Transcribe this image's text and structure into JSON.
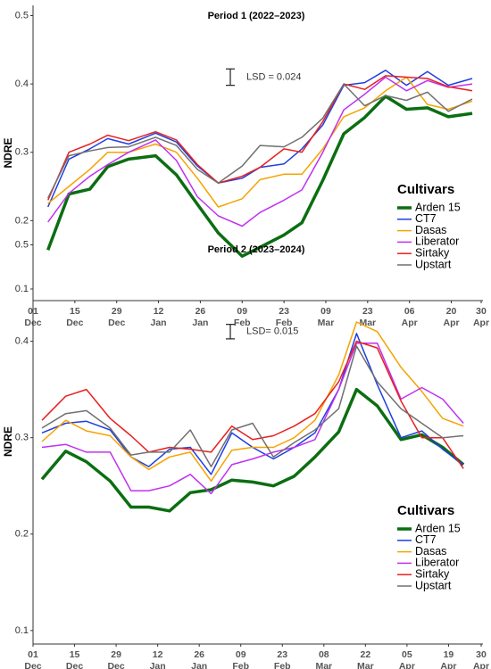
{
  "chart_data": [
    {
      "type": "line",
      "title": "Period 1 (2022–2023)",
      "y_label": "NDRE",
      "annotation": "LSD = 0.024",
      "lsd": 0.024,
      "legend_title": "Cultivars",
      "legend": "right",
      "x": [
        5,
        12,
        19,
        25,
        32,
        41,
        48,
        55,
        62,
        70,
        76,
        84,
        90,
        97,
        104,
        111,
        118,
        125,
        132,
        139,
        147
      ],
      "xlim": [
        0,
        150
      ],
      "xticks": [
        {
          "value": 0,
          "label": "01 Dec"
        },
        {
          "value": 14,
          "label": "15 Dec"
        },
        {
          "value": 28,
          "label": "29 Dec"
        },
        {
          "value": 42,
          "label": "12 Jan"
        },
        {
          "value": 56,
          "label": "26 Jan"
        },
        {
          "value": 70,
          "label": "09 Feb"
        },
        {
          "value": 84,
          "label": "23 Feb"
        },
        {
          "value": 98,
          "label": "09 Mar"
        },
        {
          "value": 112,
          "label": "23 Mar"
        },
        {
          "value": 126,
          "label": "06 Apr"
        },
        {
          "value": 140,
          "label": "20 Apr"
        },
        {
          "value": 150,
          "label": "30 Apr"
        }
      ],
      "ylim": [
        0.083,
        0.515
      ],
      "yticks": [
        0.1,
        0.2,
        0.3,
        0.4,
        0.5
      ],
      "series": [
        {
          "name": "Arden 15",
          "color": "#0b6e12",
          "values": [
            0.157,
            0.239,
            0.246,
            0.279,
            0.29,
            0.295,
            0.267,
            0.224,
            0.182,
            0.148,
            0.161,
            0.179,
            0.197,
            0.259,
            0.327,
            0.351,
            0.382,
            0.363,
            0.365,
            0.352,
            0.357
          ]
        },
        {
          "name": "CT7",
          "color": "#1f3fe0",
          "values": [
            0.22,
            0.29,
            0.305,
            0.32,
            0.312,
            0.328,
            0.315,
            0.28,
            0.255,
            0.262,
            0.278,
            0.283,
            0.305,
            0.34,
            0.398,
            0.402,
            0.42,
            0.398,
            0.418,
            0.398,
            0.408
          ]
        },
        {
          "name": "Dasas",
          "color": "#f5a300",
          "values": [
            0.225,
            0.25,
            0.275,
            0.3,
            0.3,
            0.312,
            0.3,
            0.262,
            0.22,
            0.232,
            0.26,
            0.268,
            0.268,
            0.305,
            0.352,
            0.365,
            0.39,
            0.41,
            0.37,
            0.363,
            0.375
          ]
        },
        {
          "name": "Liberator",
          "color": "#c030f0",
          "values": [
            0.198,
            0.24,
            0.265,
            0.282,
            0.3,
            0.318,
            0.288,
            0.235,
            0.207,
            0.192,
            0.212,
            0.23,
            0.245,
            0.3,
            0.362,
            0.385,
            0.41,
            0.39,
            0.405,
            0.395,
            0.4
          ]
        },
        {
          "name": "Sirtaky",
          "color": "#e82020",
          "values": [
            0.23,
            0.3,
            0.312,
            0.325,
            0.317,
            0.33,
            0.318,
            0.282,
            0.255,
            0.265,
            0.278,
            0.305,
            0.3,
            0.345,
            0.4,
            0.392,
            0.412,
            0.41,
            0.408,
            0.396,
            0.39
          ]
        },
        {
          "name": "Upstart",
          "color": "#707070",
          "values": [
            0.233,
            0.295,
            0.302,
            0.307,
            0.308,
            0.322,
            0.31,
            0.275,
            0.255,
            0.28,
            0.31,
            0.308,
            0.322,
            0.35,
            0.4,
            0.368,
            0.383,
            0.376,
            0.388,
            0.36,
            0.378
          ]
        }
      ]
    },
    {
      "type": "line",
      "title": "Period 2 (2023–2024)",
      "y_label": "NDRE",
      "annotation": "LSD= 0.015",
      "lsd": 0.015,
      "legend_title": "Cultivars",
      "legend": "right",
      "x": [
        3,
        11,
        18,
        26,
        33,
        39,
        46,
        53,
        60,
        67,
        74,
        81,
        88,
        95,
        103,
        109,
        116,
        124,
        131,
        138,
        145
      ],
      "xlim": [
        0,
        151
      ],
      "xticks": [
        {
          "value": 0,
          "label": "01 Dec"
        },
        {
          "value": 14,
          "label": "15 Dec"
        },
        {
          "value": 28,
          "label": "29 Dec"
        },
        {
          "value": 42,
          "label": "12 Jan"
        },
        {
          "value": 56,
          "label": "26 Jan"
        },
        {
          "value": 70,
          "label": "09 Feb"
        },
        {
          "value": 84,
          "label": "23 Feb"
        },
        {
          "value": 98,
          "label": "08 Mar"
        },
        {
          "value": 112,
          "label": "22 Mar"
        },
        {
          "value": 126,
          "label": "05 Apr"
        },
        {
          "value": 140,
          "label": "19 Apr"
        },
        {
          "value": 151,
          "label": "30 Apr"
        }
      ],
      "ylim": [
        0.086,
        0.506
      ],
      "yticks": [
        0.1,
        0.2,
        0.3,
        0.4,
        0.5
      ],
      "series": [
        {
          "name": "Arden 15",
          "color": "#0b6e12",
          "values": [
            0.257,
            0.286,
            0.275,
            0.255,
            0.228,
            0.228,
            0.224,
            0.243,
            0.246,
            0.256,
            0.254,
            0.25,
            0.26,
            0.28,
            0.306,
            0.35,
            0.333,
            0.298,
            0.303,
            0.29,
            0.272
          ]
        },
        {
          "name": "CT7",
          "color": "#1f3fe0",
          "values": [
            0.305,
            0.315,
            0.317,
            0.308,
            0.28,
            0.27,
            0.288,
            0.29,
            0.262,
            0.305,
            0.29,
            0.278,
            0.29,
            0.305,
            0.35,
            0.408,
            0.355,
            0.3,
            0.307,
            0.288,
            0.272
          ]
        },
        {
          "name": "Dasas",
          "color": "#f5a300",
          "values": [
            0.296,
            0.318,
            0.307,
            0.302,
            0.28,
            0.267,
            0.28,
            0.285,
            0.255,
            0.287,
            0.29,
            0.29,
            0.3,
            0.318,
            0.365,
            0.42,
            0.41,
            0.373,
            0.348,
            0.32,
            0.312
          ]
        },
        {
          "name": "Liberator",
          "color": "#c030f0",
          "values": [
            0.29,
            0.293,
            0.285,
            0.285,
            0.245,
            0.245,
            0.25,
            0.262,
            0.242,
            0.272,
            0.278,
            0.285,
            0.29,
            0.298,
            0.35,
            0.398,
            0.398,
            0.34,
            0.352,
            0.34,
            0.315
          ]
        },
        {
          "name": "Sirtaky",
          "color": "#e82020",
          "values": [
            0.318,
            0.343,
            0.35,
            0.32,
            0.302,
            0.285,
            0.29,
            0.288,
            0.285,
            0.312,
            0.298,
            0.302,
            0.312,
            0.325,
            0.358,
            0.4,
            0.393,
            0.338,
            0.3,
            0.3,
            0.268
          ]
        },
        {
          "name": "Upstart",
          "color": "#707070",
          "values": [
            0.31,
            0.325,
            0.328,
            0.31,
            0.282,
            0.285,
            0.285,
            0.308,
            0.27,
            0.308,
            0.315,
            0.28,
            0.295,
            0.308,
            0.33,
            0.395,
            0.358,
            0.33,
            0.315,
            0.3,
            0.302
          ]
        }
      ]
    }
  ]
}
